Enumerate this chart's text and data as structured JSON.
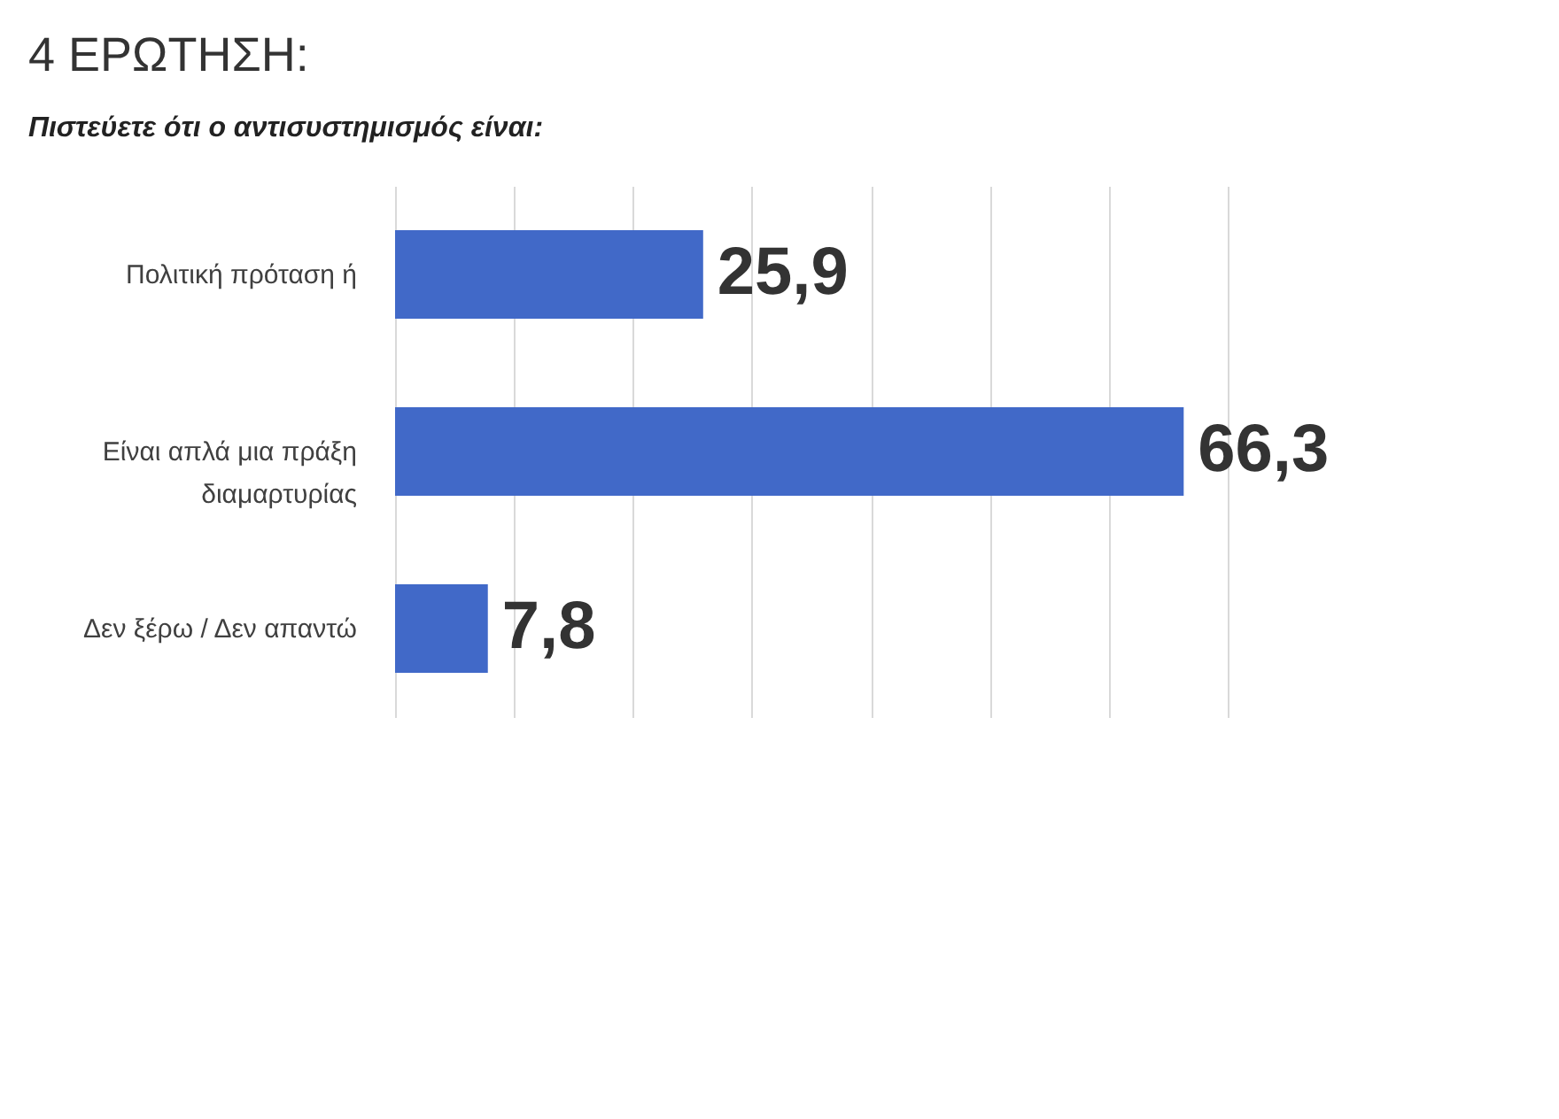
{
  "chart_data": {
    "type": "bar",
    "orientation": "horizontal",
    "title": "4 ΕΡΩΤΗΣΗ:",
    "subtitle": "Πιστεύετε ότι ο αντισυστημισμός είναι:",
    "categories": [
      "Πολιτική πρόταση ή",
      "Είναι απλά μια πράξη διαμαρτυρίας",
      "Δεν ξέρω / Δεν απαντώ"
    ],
    "values": [
      25.9,
      66.3,
      7.8
    ],
    "value_labels": [
      "25,9",
      "66,3",
      "7,8"
    ],
    "color": "#4169c8",
    "xlim": [
      0,
      70
    ],
    "xticks": [
      {
        "value": 0,
        "label": null
      },
      {
        "value": 10,
        "label": null
      },
      {
        "value": 20,
        "label": null
      },
      {
        "value": 30,
        "label": null
      },
      {
        "value": 40,
        "label": null
      },
      {
        "value": 50,
        "label": null
      },
      {
        "value": 60,
        "label": null
      },
      {
        "value": 70,
        "label": null
      }
    ],
    "grid": "x",
    "tick_labels": "y"
  }
}
